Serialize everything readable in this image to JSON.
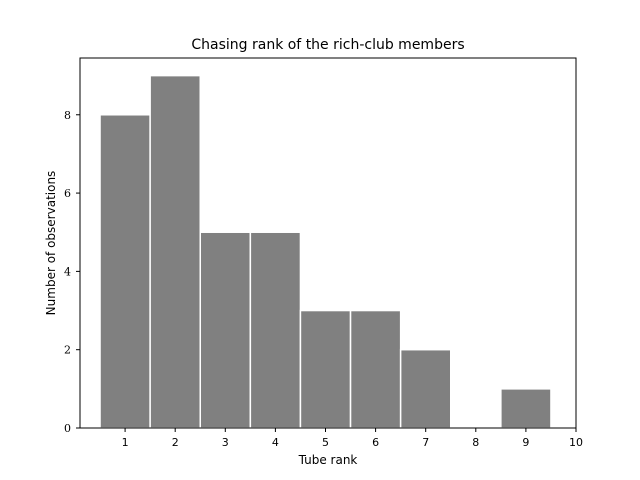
{
  "chart_data": {
    "type": "bar",
    "title": "Chasing rank of the rich-club members",
    "xlabel": "Tube rank",
    "ylabel": "Number of observations",
    "categories": [
      1,
      2,
      3,
      4,
      5,
      6,
      7,
      8,
      9
    ],
    "values": [
      8,
      9,
      5,
      5,
      3,
      3,
      2,
      0,
      1
    ],
    "xlim": [
      0.1,
      10
    ],
    "ylim": [
      0,
      9.45
    ],
    "xticks": [
      1,
      2,
      3,
      4,
      5,
      6,
      7,
      8,
      9,
      10
    ],
    "yticks": [
      0,
      2,
      4,
      6,
      8
    ],
    "bar_color": "#808080",
    "edge_color": "#ffffff",
    "grid": false
  }
}
